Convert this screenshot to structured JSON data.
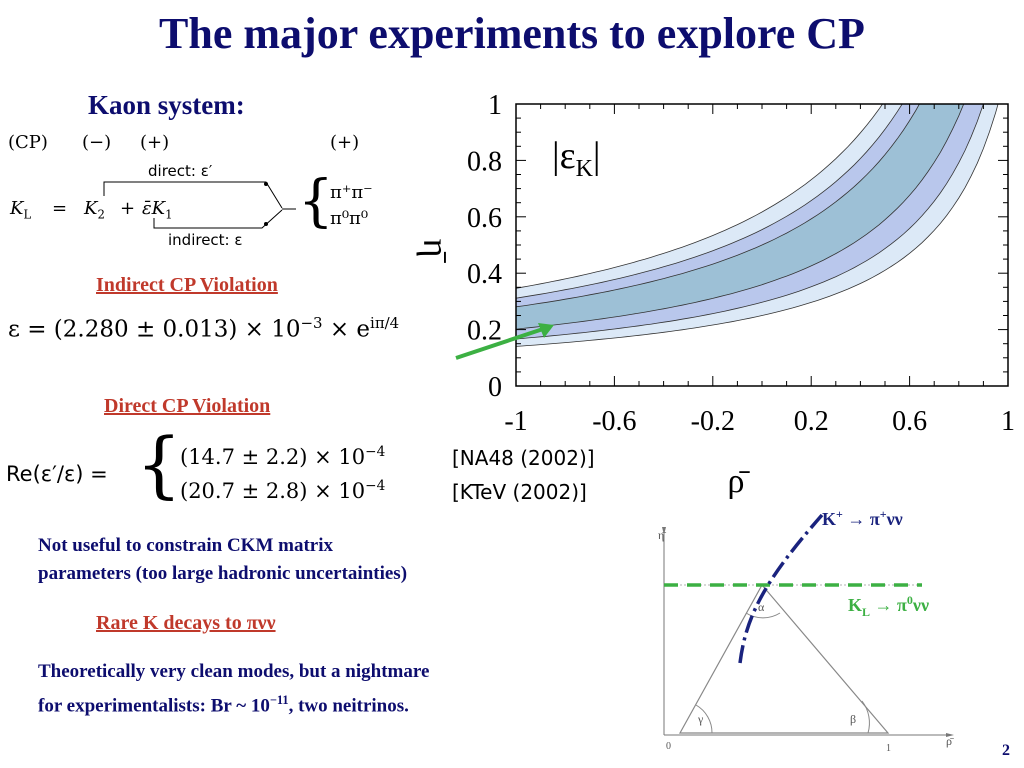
{
  "slide": {
    "title": "The major experiments to explore CP",
    "page_number": "2"
  },
  "kaon": {
    "heading": "Kaon system:",
    "cp_row": {
      "cp": "(CP)",
      "minus": "(−)",
      "plus1": "(+)",
      "plus2": "(+)"
    },
    "direct_label": "direct: ε′",
    "indirect_label": "indirect: ε",
    "kl_lhs": "K",
    "kl_lhs_sub": "L",
    "kl_eq": "=",
    "k2": "K",
    "k2_sub": "2",
    "kl_plus": "+",
    "eps_bar": "ε̄",
    "k1": "K",
    "k1_sub": "1",
    "pipi_charged": "π⁺π⁻",
    "pipi_neutral": "π⁰π⁰"
  },
  "indirect": {
    "heading": "Indirect CP Violation",
    "formula_main": "ε = (2.280 ± 0.013) × 10",
    "formula_exp": "−3",
    "formula_tail": " × e",
    "formula_tail_exp": "iπ/4"
  },
  "direct": {
    "heading": "Direct CP Violation",
    "lhs": "Re(ε′/ε) =",
    "row1_value": "(14.7 ± 2.2) × 10",
    "row1_exp": "−4",
    "row1_ref": "[NA48 (2002)]",
    "row2_value": "(20.7 ± 2.8) × 10",
    "row2_exp": "−4",
    "row2_ref": "[KTeV (2002)]"
  },
  "notes": {
    "not_useful_line1": "Not useful to constrain CKM matrix",
    "not_useful_line2": "parameters (too large hadronic uncertainties)",
    "rare_heading": "Rare K decays to πνν",
    "clean_line1": "Theoretically very clean modes, but a nightmare",
    "clean_line2_a": "for experimentalists: Br ~ 10",
    "clean_line2_exp": "−11",
    "clean_line2_b": ", two neitrinos."
  },
  "epsilon_plot": {
    "label": "|ε",
    "label_sub": "K",
    "label_end": "|",
    "xlabel": "ρ̄",
    "ylabel": "η̄",
    "x_ticks": [
      "-1",
      "-0.6",
      "-0.2",
      "0.2",
      "0.6",
      "1"
    ],
    "y_ticks": [
      "0",
      "0.2",
      "0.4",
      "0.6",
      "0.8",
      "1"
    ],
    "colors": {
      "outer": "#dce9f7",
      "middle": "#b9c7ec",
      "inner": "#9dc0d6"
    }
  },
  "triangle": {
    "eta_label": "η̄",
    "rho_label": "ρ̄",
    "origin": "0",
    "one": "1",
    "alpha": "α",
    "beta": "β",
    "gamma": "γ",
    "kplus_a": "K",
    "kplus_sup": "+",
    "kplus_b": " → π",
    "kplus_sup2": "+",
    "kplus_c": "νν",
    "kl_a": "K",
    "kl_sub": "L",
    "kl_b": " → π",
    "kl_sup": "0",
    "kl_c": "νν",
    "colors": {
      "kplus_curve": "#1a237e",
      "kl_line": "#3cb043"
    }
  }
}
